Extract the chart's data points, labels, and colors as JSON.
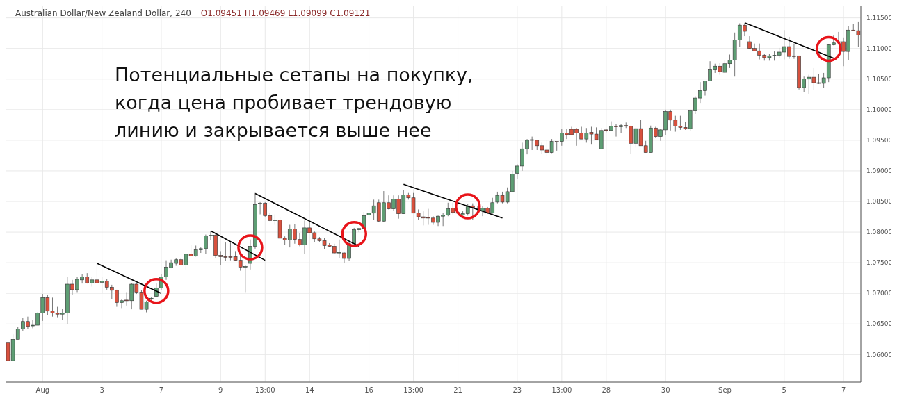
{
  "chart_data": {
    "type": "candlestick",
    "title": "Australian Dollar/New Zealand Dollar, 240",
    "subtitle": "O1.09451 H1.09469 L1.09099 C1.09121",
    "annotations": [
      "Потенциальные сетапы на покупку,\nкогда цена пробивает трендовую\nлинию и закрывается выше нее"
    ],
    "categories": [
      null,
      null,
      null,
      null,
      null,
      null,
      null,
      "Aug",
      null,
      null,
      null,
      null,
      null,
      null,
      null,
      null,
      null,
      null,
      null,
      "3",
      null,
      null,
      null,
      null,
      null,
      null,
      null,
      null,
      null,
      null,
      null,
      "7",
      null,
      null,
      null,
      null,
      null,
      null,
      null,
      null,
      null,
      null,
      null,
      "9",
      null,
      null,
      null,
      null,
      null,
      null,
      null,
      null,
      "13:00",
      null,
      null,
      null,
      null,
      null,
      null,
      null,
      null,
      "14",
      null,
      null,
      null,
      null,
      null,
      null,
      null,
      null,
      null,
      null,
      null,
      "16",
      null,
      null,
      null,
      null,
      null,
      null,
      null,
      null,
      "13:00",
      null,
      null,
      null,
      null,
      null,
      null,
      null,
      null,
      "21",
      null,
      null,
      null,
      null,
      null,
      null,
      null,
      null,
      null,
      null,
      null,
      "23",
      null,
      null,
      null,
      null,
      null,
      null,
      null,
      null,
      "13:00",
      null,
      null,
      null,
      null,
      null,
      null,
      null,
      null,
      "28",
      null,
      null,
      null,
      null,
      null,
      null,
      null,
      null,
      null,
      null,
      null,
      "30",
      null,
      null,
      null,
      null,
      null,
      null,
      null,
      null,
      null,
      null,
      null,
      "Sep",
      null,
      null,
      null,
      null,
      null,
      null,
      null,
      null,
      null,
      null,
      null,
      "5",
      null,
      null,
      null,
      null,
      null,
      null,
      null,
      null,
      null,
      null,
      null,
      "7",
      null,
      null,
      null
    ],
    "ohlc": [
      [
        1.062,
        1.064,
        1.059,
        1.059
      ],
      [
        1.059,
        1.0633,
        1.059,
        1.0625
      ],
      [
        1.0625,
        1.0645,
        1.0625,
        1.0642
      ],
      [
        1.0642,
        1.066,
        1.0639,
        1.0654
      ],
      [
        1.0654,
        1.0662,
        1.0642,
        1.0646
      ],
      [
        1.0647,
        1.0656,
        1.0643,
        1.0648
      ],
      [
        1.0648,
        1.0669,
        1.0648,
        1.0668
      ],
      [
        1.0668,
        1.0699,
        1.0655,
        1.0693
      ],
      [
        1.0693,
        1.0698,
        1.0664,
        1.0671
      ],
      [
        1.0671,
        1.0693,
        1.0662,
        1.0668
      ],
      [
        1.0668,
        1.0678,
        1.0661,
        1.0666
      ],
      [
        1.0666,
        1.0675,
        1.0657,
        1.0668
      ],
      [
        1.0668,
        1.0727,
        1.065,
        1.0715
      ],
      [
        1.0715,
        1.0722,
        1.0698,
        1.0706
      ],
      [
        1.0706,
        1.0727,
        1.0702,
        1.0723
      ],
      [
        1.0722,
        1.0732,
        1.0716,
        1.0727
      ],
      [
        1.0727,
        1.0733,
        1.0716,
        1.0717
      ],
      [
        1.0717,
        1.0727,
        1.0711,
        1.0722
      ],
      [
        1.0722,
        1.0749,
        1.0716,
        1.0717
      ],
      [
        1.0718,
        1.0727,
        1.07,
        1.072
      ],
      [
        1.072,
        1.0723,
        1.0706,
        1.071
      ],
      [
        1.071,
        1.0714,
        1.069,
        1.0705
      ],
      [
        1.0705,
        1.0706,
        1.0678,
        1.0685
      ],
      [
        1.0685,
        1.0691,
        1.0676,
        1.0688
      ],
      [
        1.0689,
        1.0702,
        1.068,
        1.0688
      ],
      [
        1.0688,
        1.0717,
        1.0674,
        1.0715
      ],
      [
        1.0715,
        1.0717,
        1.0699,
        1.0702
      ],
      [
        1.0702,
        1.0705,
        1.0674,
        1.0674
      ],
      [
        1.0674,
        1.0688,
        1.0669,
        1.0686
      ],
      [
        1.0691,
        1.0694,
        1.0688,
        1.0692
      ],
      [
        1.0695,
        1.0716,
        1.0694,
        1.0709
      ],
      [
        1.0709,
        1.0732,
        1.0706,
        1.0727
      ],
      [
        1.0727,
        1.0754,
        1.0722,
        1.0743
      ],
      [
        1.0742,
        1.0755,
        1.0741,
        1.075
      ],
      [
        1.0749,
        1.0757,
        1.0745,
        1.0755
      ],
      [
        1.0755,
        1.0757,
        1.0746,
        1.0746
      ],
      [
        1.0746,
        1.0765,
        1.0739,
        1.0764
      ],
      [
        1.0764,
        1.0779,
        1.0761,
        1.0761
      ],
      [
        1.0761,
        1.0778,
        1.076,
        1.0771
      ],
      [
        1.0771,
        1.0775,
        1.0766,
        1.0773
      ],
      [
        1.0773,
        1.0796,
        1.0764,
        1.0794
      ],
      [
        1.0794,
        1.0802,
        1.0787,
        1.0795
      ],
      [
        1.0795,
        1.0797,
        1.0757,
        1.0762
      ],
      [
        1.0762,
        1.0769,
        1.0746,
        1.076
      ],
      [
        1.076,
        1.0783,
        1.0753,
        1.0759
      ],
      [
        1.076,
        1.0783,
        1.0754,
        1.0759
      ],
      [
        1.076,
        1.0769,
        1.0753,
        1.0754
      ],
      [
        1.0754,
        1.0763,
        1.0737,
        1.0743
      ],
      [
        1.0743,
        1.0746,
        1.0702,
        1.0744
      ],
      [
        1.0749,
        1.0788,
        1.0739,
        1.0777
      ],
      [
        1.0777,
        1.0864,
        1.0773,
        1.0845
      ],
      [
        1.0846,
        1.0849,
        1.0829,
        1.0847
      ],
      [
        1.0847,
        1.0849,
        1.0824,
        1.0827
      ],
      [
        1.0827,
        1.0831,
        1.0818,
        1.0819
      ],
      [
        1.0819,
        1.0829,
        1.0812,
        1.082
      ],
      [
        1.082,
        1.0825,
        1.079,
        1.079
      ],
      [
        1.079,
        1.0793,
        1.0779,
        1.0787
      ],
      [
        1.0787,
        1.0812,
        1.0775,
        1.0805
      ],
      [
        1.0805,
        1.0813,
        1.0781,
        1.0788
      ],
      [
        1.0788,
        1.0799,
        1.0777,
        1.0779
      ],
      [
        1.0779,
        1.0819,
        1.0764,
        1.0807
      ],
      [
        1.0807,
        1.0816,
        1.0798,
        1.0799
      ],
      [
        1.0799,
        1.0801,
        1.0784,
        1.0789
      ],
      [
        1.0789,
        1.0792,
        1.0784,
        1.0786
      ],
      [
        1.0786,
        1.079,
        1.0772,
        1.0778
      ],
      [
        1.0779,
        1.0782,
        1.0776,
        1.0777
      ],
      [
        1.0777,
        1.0781,
        1.0764,
        1.0766
      ],
      [
        1.0766,
        1.0788,
        1.0758,
        1.0767
      ],
      [
        1.0766,
        1.0767,
        1.0749,
        1.0757
      ],
      [
        1.0757,
        1.0784,
        1.0753,
        1.0781
      ],
      [
        1.0781,
        1.0807,
        1.0781,
        1.0804
      ],
      [
        1.0804,
        1.0807,
        1.08,
        1.0806
      ],
      [
        1.0806,
        1.0833,
        1.0806,
        1.0827
      ],
      [
        1.0828,
        1.0834,
        1.0822,
        1.0831
      ],
      [
        1.0831,
        1.0853,
        1.082,
        1.0843
      ],
      [
        1.0848,
        1.0853,
        1.0817,
        1.0818
      ],
      [
        1.0818,
        1.0867,
        1.0817,
        1.0848
      ],
      [
        1.0848,
        1.086,
        1.0837,
        1.0838
      ],
      [
        1.0838,
        1.086,
        1.0835,
        1.0854
      ],
      [
        1.0854,
        1.086,
        1.0822,
        1.083
      ],
      [
        1.083,
        1.0869,
        1.083,
        1.0861
      ],
      [
        1.0861,
        1.0864,
        1.0853,
        1.0856
      ],
      [
        1.0856,
        1.0864,
        1.0831,
        1.0831
      ],
      [
        1.0831,
        1.0837,
        1.082,
        1.0825
      ],
      [
        1.0825,
        1.0834,
        1.0811,
        1.0823
      ],
      [
        1.0824,
        1.0838,
        1.0812,
        1.0823
      ],
      [
        1.0823,
        1.0826,
        1.0812,
        1.0816
      ],
      [
        1.0816,
        1.0827,
        1.081,
        1.0826
      ],
      [
        1.0826,
        1.0831,
        1.081,
        1.0828
      ],
      [
        1.0828,
        1.0848,
        1.0826,
        1.0838
      ],
      [
        1.0839,
        1.0848,
        1.0829,
        1.0832
      ],
      [
        1.0832,
        1.0842,
        1.0829,
        1.0831
      ],
      [
        1.0828,
        1.0834,
        1.0827,
        1.083
      ],
      [
        1.083,
        1.0846,
        1.0827,
        1.0843
      ],
      [
        1.0843,
        1.0847,
        1.082,
        1.084
      ],
      [
        1.0837,
        1.0842,
        1.0835,
        1.0838
      ],
      [
        1.0835,
        1.0842,
        1.0826,
        1.0839
      ],
      [
        1.0839,
        1.0841,
        1.083,
        1.0831
      ],
      [
        1.0831,
        1.0856,
        1.083,
        1.0848
      ],
      [
        1.0849,
        1.0866,
        1.0847,
        1.086
      ],
      [
        1.086,
        1.0866,
        1.0847,
        1.0849
      ],
      [
        1.0849,
        1.0873,
        1.0847,
        1.0866
      ],
      [
        1.0866,
        1.09,
        1.0865,
        1.0895
      ],
      [
        1.0896,
        1.0911,
        1.0887,
        1.0908
      ],
      [
        1.0908,
        1.0946,
        1.09,
        1.0936
      ],
      [
        1.0936,
        1.0952,
        1.0927,
        1.095
      ],
      [
        1.095,
        1.0956,
        1.0934,
        1.0951
      ],
      [
        1.095,
        1.0951,
        1.0934,
        1.0941
      ],
      [
        1.0941,
        1.0946,
        1.0928,
        1.0934
      ],
      [
        1.0934,
        1.095,
        1.0924,
        1.093
      ],
      [
        1.093,
        1.0952,
        1.0929,
        1.0948
      ],
      [
        1.0948,
        1.0948,
        1.0933,
        1.0947
      ],
      [
        1.0948,
        1.0968,
        1.0941,
        1.0962
      ],
      [
        1.0962,
        1.0968,
        1.0952,
        1.0959
      ],
      [
        1.0968,
        1.0972,
        1.0959,
        1.0959
      ],
      [
        1.0968,
        1.097,
        1.0941,
        1.0962
      ],
      [
        1.0962,
        1.0972,
        1.0952,
        1.0952
      ],
      [
        1.0952,
        1.097,
        1.0946,
        1.0962
      ],
      [
        1.0963,
        1.0972,
        1.0944,
        1.096
      ],
      [
        1.096,
        1.0971,
        1.0951,
        1.0951
      ],
      [
        1.0936,
        1.097,
        1.0936,
        1.0966
      ],
      [
        1.0967,
        1.0969,
        1.0963,
        1.0966
      ],
      [
        1.0966,
        1.0981,
        1.0965,
        1.0973
      ],
      [
        1.0973,
        1.0976,
        1.0956,
        1.0972
      ],
      [
        1.0972,
        1.0977,
        1.0962,
        1.0974
      ],
      [
        1.0974,
        1.0979,
        1.097,
        1.0973
      ],
      [
        1.0973,
        1.0974,
        1.0928,
        1.0945
      ],
      [
        1.0945,
        1.097,
        1.0938,
        1.0969
      ],
      [
        1.0969,
        1.0983,
        1.0941,
        1.0941
      ],
      [
        1.0941,
        1.0949,
        1.093,
        1.093
      ],
      [
        1.093,
        1.0974,
        1.093,
        1.097
      ],
      [
        1.097,
        1.0972,
        1.0954,
        1.0956
      ],
      [
        1.0956,
        1.0969,
        1.0949,
        1.0967
      ],
      [
        1.0967,
        1.1,
        1.0958,
        1.0997
      ],
      [
        1.0997,
        1.1,
        1.0966,
        1.0983
      ],
      [
        1.0983,
        1.099,
        1.0964,
        1.0973
      ],
      [
        1.0973,
        1.099,
        1.0967,
        1.0971
      ],
      [
        1.0971,
        1.098,
        1.0967,
        1.0969
      ],
      [
        1.0969,
        1.1,
        1.0965,
        1.0998
      ],
      [
        1.0998,
        1.1022,
        1.0993,
        1.1019
      ],
      [
        1.1019,
        1.1045,
        1.1011,
        1.1031
      ],
      [
        1.1031,
        1.1047,
        1.1023,
        1.1047
      ],
      [
        1.1047,
        1.1079,
        1.1047,
        1.1065
      ],
      [
        1.1065,
        1.1075,
        1.106,
        1.1071
      ],
      [
        1.1071,
        1.1076,
        1.1057,
        1.1062
      ],
      [
        1.1061,
        1.1081,
        1.106,
        1.1075
      ],
      [
        1.1075,
        1.109,
        1.1068,
        1.1081
      ],
      [
        1.1081,
        1.1126,
        1.1054,
        1.1114
      ],
      [
        1.1114,
        1.1141,
        1.1102,
        1.1138
      ],
      [
        1.1138,
        1.1141,
        1.112,
        1.1128
      ],
      [
        1.1111,
        1.112,
        1.1099,
        1.11
      ],
      [
        1.11,
        1.1108,
        1.1096,
        1.1096
      ],
      [
        1.1096,
        1.1108,
        1.1082,
        1.1089
      ],
      [
        1.1089,
        1.1091,
        1.108,
        1.1085
      ],
      [
        1.1085,
        1.1091,
        1.108,
        1.1088
      ],
      [
        1.1088,
        1.1095,
        1.108,
        1.1089
      ],
      [
        1.1089,
        1.1101,
        1.1085,
        1.1094
      ],
      [
        1.1094,
        1.113,
        1.1082,
        1.1103
      ],
      [
        1.1103,
        1.1119,
        1.1083,
        1.1087
      ],
      [
        1.1088,
        1.1108,
        1.1083,
        1.1087
      ],
      [
        1.1088,
        1.1088,
        1.1033,
        1.1036
      ],
      [
        1.1036,
        1.1054,
        1.1029,
        1.105
      ],
      [
        1.105,
        1.1057,
        1.1026,
        1.1053
      ],
      [
        1.1053,
        1.1068,
        1.1032,
        1.1044
      ],
      [
        1.1044,
        1.1058,
        1.1042,
        1.1043
      ],
      [
        1.1043,
        1.106,
        1.1036,
        1.1052
      ],
      [
        1.1052,
        1.1107,
        1.1045,
        1.1106
      ],
      [
        1.1106,
        1.1121,
        1.1105,
        1.1109
      ],
      [
        1.111,
        1.1127,
        1.1108,
        1.1111
      ],
      [
        1.1111,
        1.1118,
        1.1071,
        1.1095
      ],
      [
        1.1095,
        1.1136,
        1.1081,
        1.113
      ],
      [
        1.113,
        1.114,
        1.1128,
        1.1129
      ],
      [
        1.1129,
        1.1144,
        1.1102,
        1.1122
      ]
    ],
    "colors": [
      "#d8513e",
      "#5e9e74",
      "#5e9e74",
      "#5e9e74",
      "#d8513e",
      "#5e9e74",
      "#5e9e74",
      "#5e9e74",
      "#d8513e",
      "#d8513e",
      "#d8513e",
      "#5e9e74",
      "#5e9e74",
      "#d8513e",
      "#5e9e74",
      "#5e9e74",
      "#d8513e",
      "#5e9e74",
      "#d8513e",
      "#5e9e74",
      "#d8513e",
      "#d8513e",
      "#d8513e",
      "#5e9e74",
      "#d8513e",
      "#5e9e74",
      "#d8513e",
      "#d8513e",
      "#5e9e74",
      "#5e9e74",
      "#5e9e74",
      "#5e9e74",
      "#5e9e74",
      "#5e9e74",
      "#5e9e74",
      "#d8513e",
      "#5e9e74",
      "#d8513e",
      "#5e9e74",
      "#5e9e74",
      "#5e9e74",
      "#5e9e74",
      "#d8513e",
      "#d8513e",
      "#d8513e",
      "#d8513e",
      "#d8513e",
      "#d8513e",
      "#5e9e74",
      "#5e9e74",
      "#5e9e74",
      "#5e9e74",
      "#d8513e",
      "#d8513e",
      "#5e9e74",
      "#d8513e",
      "#d8513e",
      "#5e9e74",
      "#d8513e",
      "#d8513e",
      "#5e9e74",
      "#d8513e",
      "#d8513e",
      "#d8513e",
      "#d8513e",
      "#d8513e",
      "#d8513e",
      "#5e9e74",
      "#d8513e",
      "#5e9e74",
      "#5e9e74",
      "#5e9e74",
      "#5e9e74",
      "#5e9e74",
      "#5e9e74",
      "#d8513e",
      "#5e9e74",
      "#d8513e",
      "#5e9e74",
      "#d8513e",
      "#5e9e74",
      "#d8513e",
      "#d8513e",
      "#d8513e",
      "#d8513e",
      "#d8513e",
      "#d8513e",
      "#5e9e74",
      "#5e9e74",
      "#5e9e74",
      "#d8513e",
      "#d8513e",
      "#5e9e74",
      "#5e9e74",
      "#d8513e",
      "#5e9e74",
      "#5e9e74",
      "#d8513e",
      "#5e9e74",
      "#5e9e74",
      "#d8513e",
      "#5e9e74",
      "#5e9e74",
      "#5e9e74",
      "#5e9e74",
      "#5e9e74",
      "#5e9e74",
      "#d8513e",
      "#d8513e",
      "#d8513e",
      "#5e9e74",
      "#d8513e",
      "#5e9e74",
      "#d8513e",
      "#d8513e",
      "#d8513e",
      "#d8513e",
      "#5e9e74",
      "#d8513e",
      "#d8513e",
      "#5e9e74",
      "#d8513e",
      "#5e9e74",
      "#d8513e",
      "#5e9e74",
      "#d8513e",
      "#d8513e",
      "#5e9e74",
      "#d8513e",
      "#d8513e",
      "#5e9e74",
      "#d8513e",
      "#5e9e74",
      "#5e9e74",
      "#d8513e",
      "#d8513e",
      "#d8513e",
      "#d8513e",
      "#5e9e74",
      "#5e9e74",
      "#5e9e74",
      "#5e9e74",
      "#5e9e74",
      "#5e9e74",
      "#d8513e",
      "#5e9e74",
      "#5e9e74",
      "#5e9e74",
      "#5e9e74",
      "#d8513e",
      "#d8513e",
      "#d8513e",
      "#d8513e",
      "#d8513e",
      "#5e9e74",
      "#5e9e74",
      "#5e9e74",
      "#5e9e74",
      "#d8513e",
      "#d8513e",
      "#d8513e",
      "#5e9e74",
      "#5e9e74",
      "#d8513e",
      "#d8513e",
      "#5e9e74",
      "#5e9e74",
      "#5e9e74",
      "#5e9e74",
      "#d8513e",
      "#5e9e74",
      "#d8513e",
      "#d8513e"
    ],
    "series": [
      {
        "type": "line",
        "color": "#000000",
        "values": [
          null,
          null,
          null,
          null,
          null,
          null,
          null,
          null,
          null,
          null,
          null,
          null,
          null,
          null,
          null,
          null,
          null,
          null,
          1.0749,
          null,
          null,
          null,
          null,
          null,
          null,
          null,
          null,
          null,
          null,
          null,
          null,
          1.07,
          null,
          null,
          null,
          null,
          null,
          null,
          null,
          null,
          null,
          null,
          null,
          null,
          null,
          null,
          null,
          null,
          null,
          null,
          null,
          null,
          null,
          null,
          null,
          null,
          null,
          null,
          null,
          null,
          null,
          null,
          null,
          null,
          null,
          null,
          null,
          null,
          null,
          null,
          null,
          null,
          null,
          null,
          null,
          null,
          null,
          null,
          null,
          null,
          null,
          null,
          null,
          null,
          null,
          null,
          null,
          null,
          null,
          null,
          null,
          null,
          null,
          null,
          null,
          null,
          null,
          null,
          null,
          null,
          null,
          null,
          null,
          null,
          null,
          null,
          null,
          null,
          null,
          null,
          null,
          null,
          null,
          null,
          null,
          null,
          null,
          null,
          null,
          null,
          null,
          null,
          null,
          null,
          null,
          null,
          null,
          null,
          null,
          null,
          null,
          null,
          null,
          null,
          null,
          null,
          null,
          null,
          null,
          null,
          null,
          null,
          null,
          null,
          null,
          null,
          null,
          null,
          null,
          null,
          null,
          null,
          null,
          null,
          null,
          null,
          null,
          null,
          null,
          null,
          null,
          null,
          null,
          null,
          null,
          null,
          null,
          null,
          null,
          null,
          null,
          null,
          null
        ]
      },
      {
        "type": "line",
        "color": "#000000",
        "values": [
          null,
          null,
          null,
          null,
          null,
          null,
          null,
          null,
          null,
          null,
          null,
          null,
          null,
          null,
          null,
          null,
          null,
          null,
          null,
          null,
          null,
          null,
          null,
          null,
          null,
          null,
          null,
          null,
          null,
          null,
          null,
          null,
          null,
          null,
          null,
          null,
          null,
          null,
          null,
          null,
          null,
          1.0802,
          null,
          null,
          null,
          null,
          null,
          null,
          null,
          null,
          null,
          null,
          1.0754,
          null,
          null,
          null,
          null,
          null,
          null,
          null,
          null,
          null,
          null,
          null,
          null,
          null,
          null,
          null,
          null,
          null,
          null,
          null,
          null,
          null,
          null,
          null,
          null,
          null,
          null,
          null,
          null,
          null,
          null,
          null,
          null,
          null,
          null,
          null,
          null,
          null,
          null,
          null,
          null,
          null,
          null,
          null,
          null,
          null,
          null,
          null,
          null,
          null,
          null,
          null,
          null,
          null,
          null,
          null,
          null,
          null,
          null,
          null,
          null,
          null,
          null,
          null,
          null,
          null,
          null,
          null,
          null,
          null,
          null,
          null,
          null,
          null,
          null,
          null,
          null,
          null,
          null,
          null,
          null,
          null,
          null,
          null,
          null,
          null,
          null,
          null,
          null,
          null,
          null,
          null,
          null,
          null,
          null,
          null,
          null,
          null,
          null,
          null,
          null,
          null,
          null,
          null,
          null,
          null,
          null,
          null,
          null,
          null,
          null,
          null,
          null,
          null,
          null,
          null,
          null,
          null,
          null,
          null,
          null
        ]
      },
      {
        "type": "line",
        "color": "#000000",
        "values": [
          null,
          null,
          null,
          null,
          null,
          null,
          null,
          null,
          null,
          null,
          null,
          null,
          null,
          null,
          null,
          null,
          null,
          null,
          null,
          null,
          null,
          null,
          null,
          null,
          null,
          null,
          null,
          null,
          null,
          null,
          null,
          null,
          null,
          null,
          null,
          null,
          null,
          null,
          null,
          null,
          null,
          null,
          null,
          null,
          null,
          null,
          null,
          null,
          null,
          null,
          1.0863,
          null,
          null,
          null,
          null,
          null,
          null,
          null,
          null,
          null,
          null,
          null,
          null,
          null,
          null,
          null,
          null,
          null,
          null,
          null,
          null,
          1.0777,
          null,
          null,
          null,
          null,
          null,
          null,
          null,
          null,
          null,
          null,
          null,
          null,
          null,
          null,
          null,
          null,
          null,
          null,
          null,
          null,
          null,
          null,
          null,
          null,
          null,
          null,
          null,
          null,
          null,
          null,
          null,
          null,
          null,
          null,
          null,
          null,
          null,
          null,
          null,
          null,
          null,
          null,
          null,
          null,
          null,
          null,
          null,
          null,
          null,
          null,
          null,
          null,
          null,
          null,
          null,
          null,
          null,
          null,
          null,
          null,
          null,
          null,
          null,
          null,
          null,
          null,
          null,
          null,
          null,
          null,
          null,
          null,
          null,
          null,
          null,
          null,
          null,
          null,
          null,
          null,
          null,
          null,
          null,
          null,
          null,
          null,
          null,
          null,
          null,
          null,
          null,
          null,
          null,
          null,
          null,
          null,
          null,
          null,
          null,
          null,
          null
        ]
      },
      {
        "type": "line",
        "color": "#000000",
        "values": [
          null,
          null,
          null,
          null,
          null,
          null,
          null,
          null,
          null,
          null,
          null,
          null,
          null,
          null,
          null,
          null,
          null,
          null,
          null,
          null,
          null,
          null,
          null,
          null,
          null,
          null,
          null,
          null,
          null,
          null,
          null,
          null,
          null,
          null,
          null,
          null,
          null,
          null,
          null,
          null,
          null,
          null,
          null,
          null,
          null,
          null,
          null,
          null,
          null,
          null,
          null,
          null,
          null,
          null,
          null,
          null,
          null,
          null,
          null,
          null,
          null,
          null,
          null,
          null,
          null,
          null,
          null,
          null,
          null,
          null,
          null,
          null,
          null,
          null,
          null,
          null,
          null,
          null,
          null,
          null,
          1.0878,
          null,
          null,
          null,
          null,
          null,
          null,
          null,
          null,
          null,
          null,
          null,
          null,
          null,
          null,
          null,
          null,
          null,
          null,
          null,
          1.0823,
          null,
          null,
          null,
          null,
          null,
          null,
          null,
          null,
          null,
          null,
          null,
          null,
          null,
          null,
          null,
          null,
          null,
          null,
          null,
          null,
          null,
          null,
          null,
          null,
          null,
          null,
          null,
          null,
          null,
          null,
          null,
          null,
          null,
          null,
          null,
          null,
          null,
          null,
          null,
          null,
          null,
          null,
          null,
          null,
          null,
          null,
          null,
          null,
          null,
          null,
          null,
          null,
          null,
          null,
          null,
          null,
          null,
          null,
          null,
          null,
          null,
          null,
          null,
          null,
          null,
          null,
          null,
          null,
          null,
          null,
          null,
          null
        ]
      },
      {
        "type": "line",
        "color": "#000000",
        "values": [
          null,
          null,
          null,
          null,
          null,
          null,
          null,
          null,
          null,
          null,
          null,
          null,
          null,
          null,
          null,
          null,
          null,
          null,
          null,
          null,
          null,
          null,
          null,
          null,
          null,
          null,
          null,
          null,
          null,
          null,
          null,
          null,
          null,
          null,
          null,
          null,
          null,
          null,
          null,
          null,
          null,
          null,
          null,
          null,
          null,
          null,
          null,
          null,
          null,
          null,
          null,
          null,
          null,
          null,
          null,
          null,
          null,
          null,
          null,
          null,
          null,
          null,
          null,
          null,
          null,
          null,
          null,
          null,
          null,
          null,
          null,
          null,
          null,
          null,
          null,
          null,
          null,
          null,
          null,
          null,
          null,
          null,
          null,
          null,
          null,
          null,
          null,
          null,
          null,
          null,
          null,
          null,
          null,
          null,
          null,
          null,
          null,
          null,
          null,
          null,
          null,
          null,
          null,
          null,
          null,
          null,
          null,
          null,
          null,
          null,
          null,
          null,
          null,
          null,
          null,
          null,
          null,
          null,
          null,
          null,
          null,
          null,
          null,
          null,
          null,
          null,
          null,
          null,
          null,
          null,
          null,
          null,
          null,
          null,
          null,
          null,
          null,
          null,
          null,
          null,
          null,
          null,
          null,
          null,
          null,
          null,
          null,
          null,
          null,
          1.1142,
          null,
          null,
          null,
          null,
          null,
          null,
          null,
          null,
          null,
          null,
          null,
          null,
          null,
          null,
          null,
          null,
          null,
          1.1084,
          null,
          null,
          null,
          null,
          null
        ]
      },
      {
        "type": "scatter",
        "color": "#e8141a",
        "marker": "circle",
        "values": [
          null,
          null,
          null,
          null,
          null,
          null,
          null,
          null,
          null,
          null,
          null,
          null,
          null,
          null,
          null,
          null,
          null,
          null,
          null,
          null,
          null,
          null,
          null,
          null,
          null,
          null,
          null,
          null,
          null,
          null,
          1.0704,
          null,
          null,
          null,
          null,
          null,
          null,
          null,
          null,
          null,
          null,
          null,
          null,
          null,
          null,
          null,
          null,
          null,
          null,
          1.0775,
          null,
          null,
          null,
          null,
          null,
          null,
          null,
          null,
          null,
          null,
          null,
          null,
          null,
          null,
          null,
          null,
          null,
          null,
          null,
          null,
          1.0797,
          null,
          null,
          null,
          null,
          null,
          null,
          null,
          null,
          null,
          null,
          null,
          null,
          null,
          null,
          null,
          null,
          null,
          null,
          null,
          null,
          null,
          null,
          1.0842,
          null,
          null,
          null,
          null,
          null,
          null,
          null,
          null,
          null,
          null,
          null,
          null,
          null,
          null,
          null,
          null,
          null,
          null,
          null,
          null,
          null,
          null,
          null,
          null,
          null,
          null,
          null,
          null,
          null,
          null,
          null,
          null,
          null,
          null,
          null,
          null,
          null,
          null,
          null,
          null,
          null,
          null,
          null,
          null,
          null,
          null,
          null,
          null,
          null,
          null,
          null,
          null,
          null,
          null,
          null,
          null,
          null,
          null,
          null,
          null,
          null,
          null,
          null,
          null,
          null,
          null,
          null,
          null,
          null,
          null,
          null,
          null,
          1.1099,
          null,
          null,
          null,
          null,
          null,
          null
        ]
      }
    ],
    "ylim": [
      1.0555,
      1.117
    ],
    "yticks": [
      {
        "value": 1.06,
        "label": "1.06000"
      },
      {
        "value": 1.065,
        "label": "1.06500"
      },
      {
        "value": 1.07,
        "label": "1.07000"
      },
      {
        "value": 1.075,
        "label": "1.07500"
      },
      {
        "value": 1.08,
        "label": "1.08000"
      },
      {
        "value": 1.085,
        "label": "1.08500"
      },
      {
        "value": 1.09,
        "label": "1.09000"
      },
      {
        "value": 1.095,
        "label": "1.09500"
      },
      {
        "value": 1.1,
        "label": "1.10000"
      },
      {
        "value": 1.105,
        "label": "1.10500"
      },
      {
        "value": 1.11,
        "label": "1.11000"
      },
      {
        "value": 1.115,
        "label": "1.11500"
      }
    ],
    "grid": true
  }
}
